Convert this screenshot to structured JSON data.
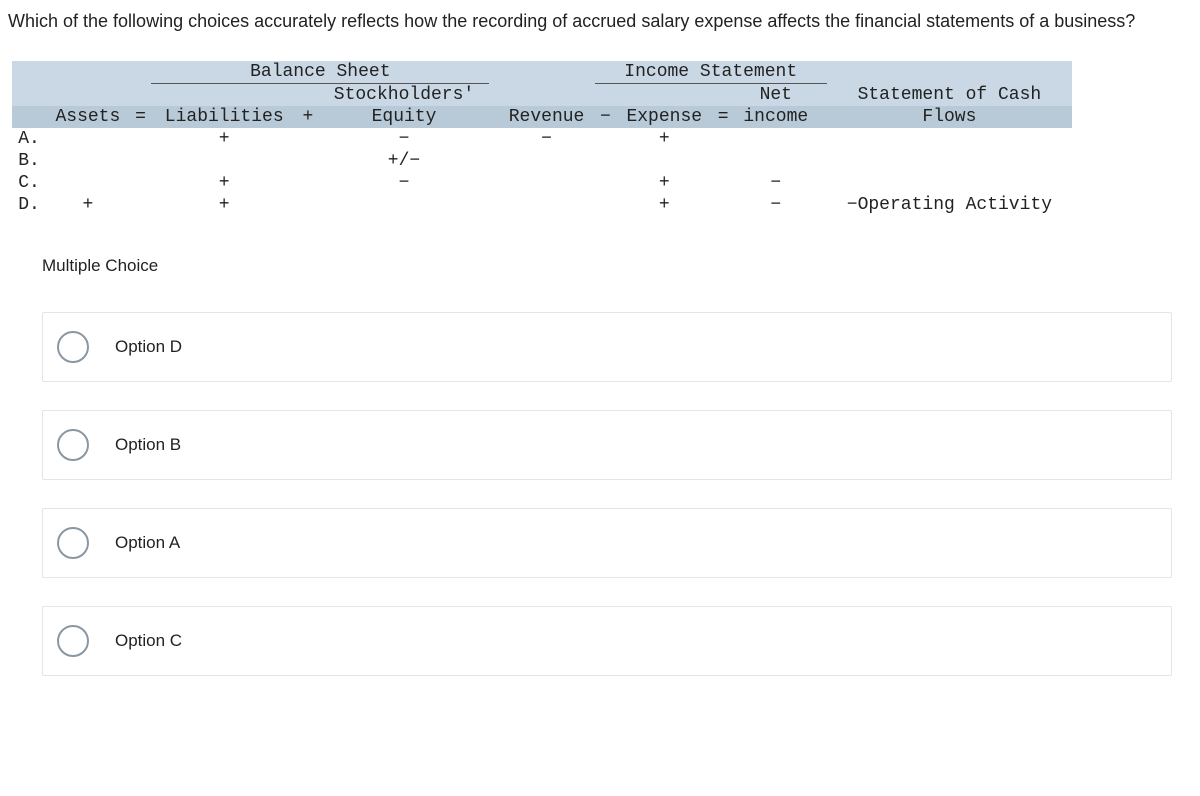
{
  "question": "Which of the following choices accurately reflects how the recording of accrued salary expense affects the financial statements of a business?",
  "table": {
    "group_headers": {
      "balance_sheet": "Balance Sheet",
      "income_statement": "Income Statement"
    },
    "col_headers": {
      "assets": "Assets",
      "eq1": "=",
      "liabilities": "Liabilities",
      "plus1": "+",
      "stockholders_equity_1": "Stockholders'",
      "stockholders_equity_2": "Equity",
      "revenue": "Revenue",
      "minus": "−",
      "expense": "Expense",
      "eq2": "=",
      "net_income_1": "Net",
      "net_income_2": "income",
      "cash_flows_1": "Statement of Cash",
      "cash_flows_2": "Flows"
    },
    "rows": [
      {
        "label": "A.",
        "assets": "",
        "liab": "+",
        "se": "−",
        "rev": "−",
        "exp": "+",
        "ni": "",
        "cf": ""
      },
      {
        "label": "B.",
        "assets": "",
        "liab": "",
        "se": "+/−",
        "rev": "",
        "exp": "",
        "ni": "",
        "cf": ""
      },
      {
        "label": "C.",
        "assets": "",
        "liab": "+",
        "se": "−",
        "rev": "",
        "exp": "+",
        "ni": "−",
        "cf": ""
      },
      {
        "label": "D.",
        "assets": "+",
        "liab": "+",
        "se": "",
        "rev": "",
        "exp": "+",
        "ni": "−",
        "cf": "−Operating Activity"
      }
    ]
  },
  "mc_heading": "Multiple Choice",
  "options": [
    {
      "label": "Option D"
    },
    {
      "label": "Option B"
    },
    {
      "label": "Option A"
    },
    {
      "label": "Option C"
    }
  ],
  "colors": {
    "group_bg": "#c9d8e4",
    "head_bg": "#b8cad7",
    "border": "#e2e6ea",
    "radio": "#8a97a3"
  }
}
